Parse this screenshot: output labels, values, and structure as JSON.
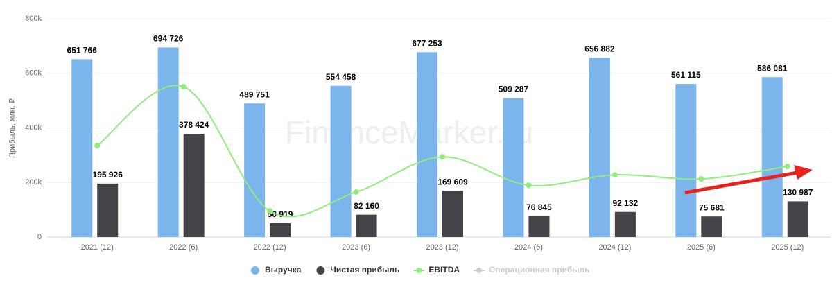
{
  "chart_data": {
    "type": "bar",
    "y_label": "Прибыль, млн. ₽",
    "watermark": "FinanceMarker.ru",
    "categories": [
      "2021 (12)",
      "2022 (6)",
      "2022 (12)",
      "2023 (6)",
      "2023 (12)",
      "2024 (6)",
      "2024 (12)",
      "2025 (6)",
      "2025 (12)"
    ],
    "series": [
      {
        "name": "Выручка",
        "type": "bar",
        "color": "#7cb5ec",
        "values": [
          651766,
          694726,
          489751,
          554458,
          677253,
          509287,
          656882,
          561115,
          586081
        ],
        "value_labels": [
          "651 766",
          "694 726",
          "489 751",
          "554 458",
          "677 253",
          "509 287",
          "656 882",
          "561 115",
          "586 081"
        ]
      },
      {
        "name": "Чистая прибыль",
        "type": "bar",
        "color": "#434348",
        "values": [
          195926,
          378424,
          50919,
          82160,
          169609,
          76845,
          92132,
          75681,
          130987
        ],
        "value_labels": [
          "195 926",
          "378 424",
          "50 919",
          "82 160",
          "169 609",
          "76 845",
          "92 132",
          "75 681",
          "130 987"
        ]
      },
      {
        "name": "EBITDA",
        "type": "line",
        "color": "#90ed7d",
        "values": [
          335000,
          551000,
          96000,
          165000,
          294000,
          190000,
          228000,
          213000,
          259000
        ]
      },
      {
        "name": "Операционная прибыль",
        "type": "line",
        "color": "#cccccc",
        "hidden": true,
        "values": [
          null,
          null,
          null,
          null,
          null,
          null,
          null,
          null,
          null
        ]
      }
    ],
    "ylim": [
      0,
      800000
    ],
    "yticks": [
      0,
      {
        "value": 200000,
        "label": "200k"
      },
      {
        "value": 400000,
        "label": "400k"
      },
      {
        "value": 600000,
        "label": "600k"
      },
      {
        "value": 800000,
        "label": "800k"
      }
    ],
    "grid": true
  }
}
